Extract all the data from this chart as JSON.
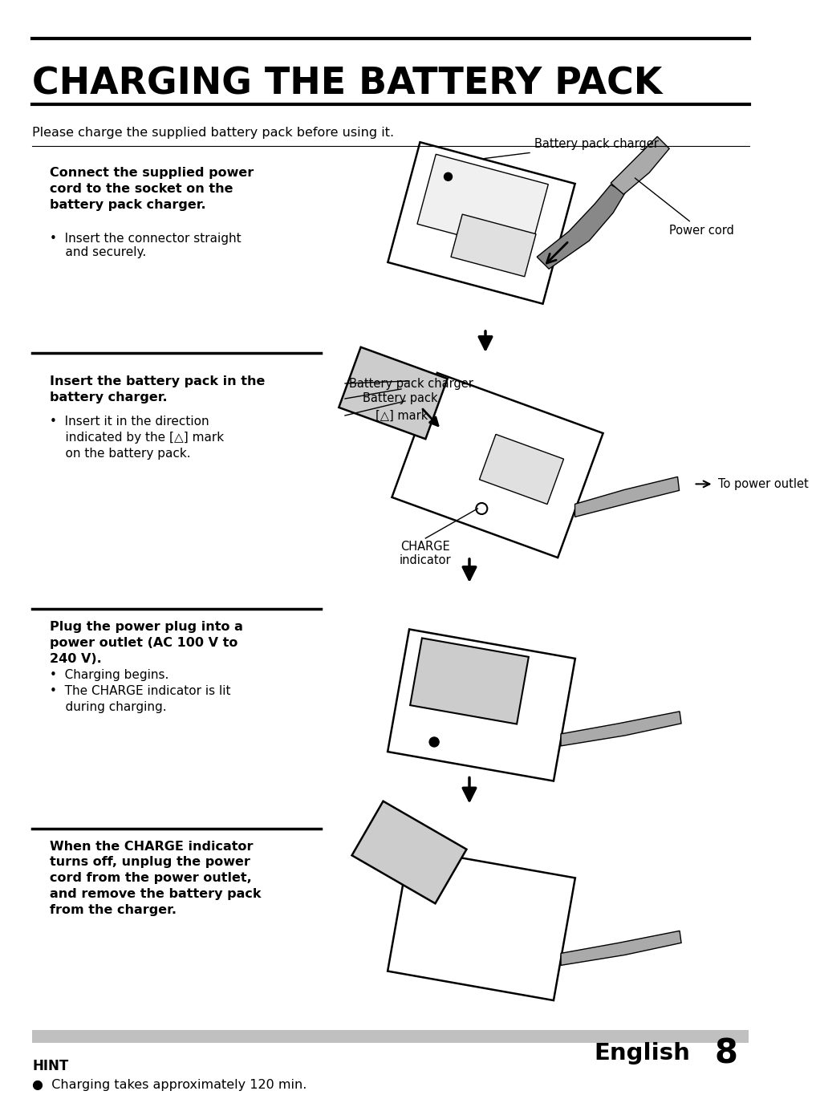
{
  "title": "CHARGING THE BATTERY PACK",
  "subtitle": "Please charge the supplied battery pack before using it.",
  "bg_color": "#ffffff",
  "section1_bold": "Connect the supplied power\ncord to the socket on the\nbattery pack charger.",
  "section1_bullet": "•  Insert the connector straight\n    and securely.",
  "section2_bold": "Insert the battery pack in the\nbattery charger.",
  "section2_bullet": "•  Insert it in the direction\n    indicated by the [△] mark\n    on the battery pack.",
  "section3_bold": "Plug the power plug into a\npower outlet (AC 100 V to\n240 V).",
  "section3_bullets": "•  Charging begins.\n•  The CHARGE indicator is lit\n    during charging.",
  "section4_bold": "When the CHARGE indicator\nturns off, unplug the power\ncord from the power outlet,\nand remove the battery pack\nfrom the charger.",
  "hint_title": "HINT",
  "hint_bullet": "●  Charging takes approximately 120 min.",
  "footer_text": "English",
  "footer_page": "8",
  "label_bpc": "Battery pack charger",
  "label_pc": "Power cord",
  "label_bp": "Battery pack",
  "label_mark": "[△] mark",
  "label_charge": "CHARGE\nindicator",
  "label_outlet": "To power outlet"
}
